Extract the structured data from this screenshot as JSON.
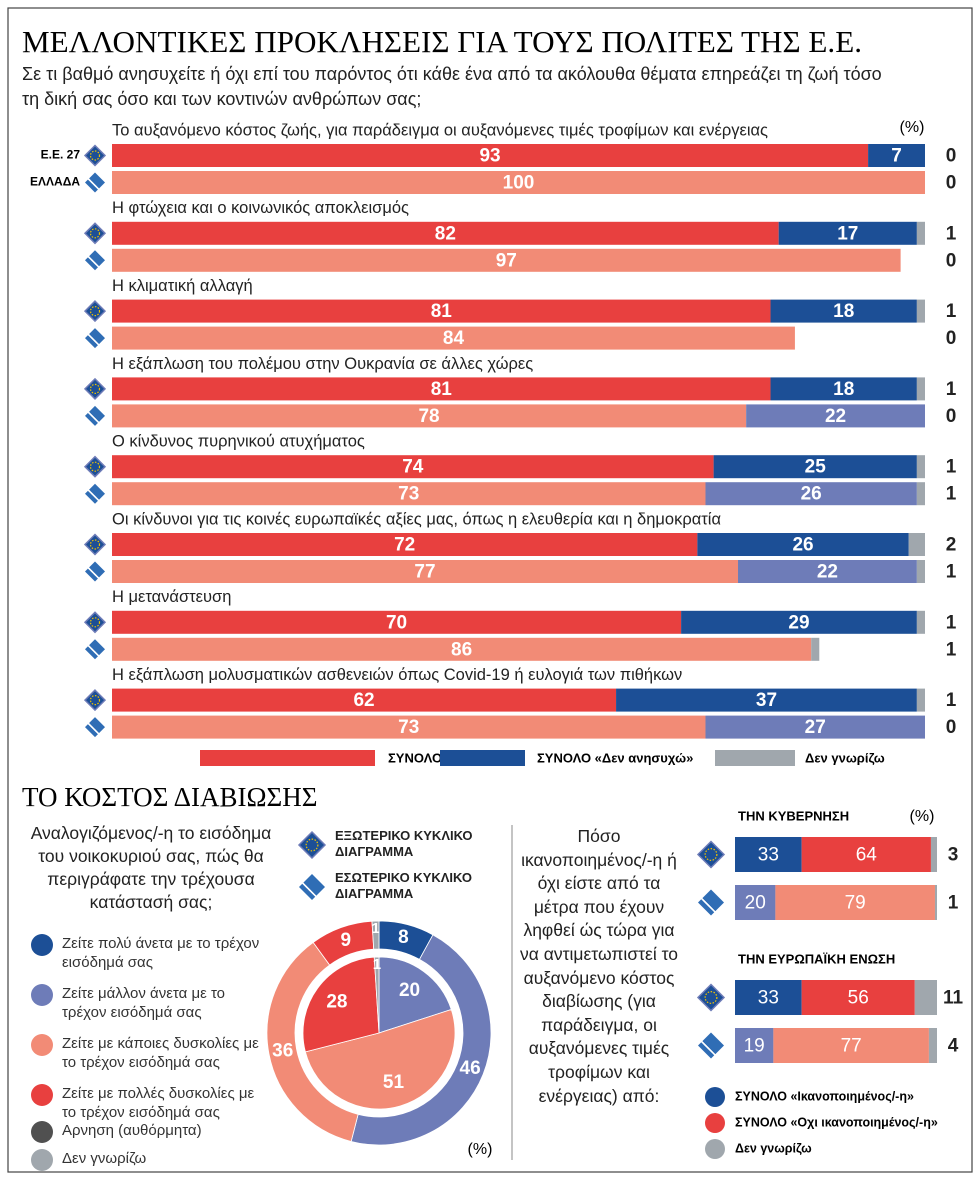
{
  "header": {
    "title": "ΜΕΛΛΟΝΤΙΚΕΣ ΠΡΟΚΛΗΣΕΙΣ ΓΙΑ ΤΟΥΣ ΠΟΛΙΤΕΣ ΤΗΣ Ε.Ε.",
    "subtitle": "Σε τι βαθμό ανησυχείτε ή όχι επί του παρόντος ότι κάθε ένα από τα ακόλουθα θέματα επηρεάζει τη ζωή τόσο τη δική σας όσο και των κοντινών ανθρώπων σας;",
    "section_title": "ΤΟ ΚΟΣΤΟΣ ΔΙΑΒΙΩΣΗΣ"
  },
  "chart_data": [
    {
      "type": "bar",
      "orientation": "horizontal",
      "stacked": true,
      "unit": "(%)",
      "xlim": [
        0,
        100
      ],
      "groups": [
        "Ε.Ε. 27",
        "ΕΛΛΑΔΑ"
      ],
      "categories": [
        "Το αυξανόμενο κόστος ζωής, για παράδειγμα οι αυξανόμενες τιμές τροφίμων και ενέργειας",
        "Η φτώχεια και ο κοινωνικός αποκλεισμός",
        "Η κλιματική αλλαγή",
        "Η εξάπλωση του πολέμου στην Ουκρανία σε άλλες χώρες",
        "Ο κίνδυνος πυρηνικού ατυχήματος",
        "Οι κίνδυνοι για τις κοινές ευρωπαϊκές αξίες μας, όπως η ελευθερία και η δημοκρατία",
        "Η μετανάστευση",
        "Η εξάπλωση μολυσματικών ασθενειών όπως Covid-19 ή ευλογιά των πιθήκων"
      ],
      "series": [
        {
          "name": "ΣΥΝΟΛΟ «Ανησυχώ»",
          "color": "#e8403f",
          "light_color": "#f28b76",
          "values": [
            [
              93,
              100
            ],
            [
              82,
              97
            ],
            [
              81,
              84
            ],
            [
              81,
              78
            ],
            [
              74,
              73
            ],
            [
              72,
              77
            ],
            [
              70,
              86
            ],
            [
              62,
              73
            ]
          ]
        },
        {
          "name": "ΣΥΝΟΛΟ «Δεν ανησυχώ»",
          "color": "#1c4f96",
          "light_color": "#6e7cb8",
          "values": [
            [
              7,
              null
            ],
            [
              17,
              null
            ],
            [
              18,
              null
            ],
            [
              18,
              22
            ],
            [
              25,
              26
            ],
            [
              26,
              22
            ],
            [
              29,
              null
            ],
            [
              37,
              27
            ]
          ]
        },
        {
          "name": "Δεν γνωρίζω",
          "color": "#a0a7ad",
          "light_color": "#a0a7ad",
          "values": [
            [
              0,
              0
            ],
            [
              1,
              0
            ],
            [
              1,
              0
            ],
            [
              1,
              0
            ],
            [
              1,
              1
            ],
            [
              2,
              1
            ],
            [
              1,
              1
            ],
            [
              1,
              0
            ]
          ]
        }
      ]
    },
    {
      "type": "pie",
      "donut": true,
      "unit": "(%)",
      "title": "Αναλογιζόμενος/-η το εισόδημα του νοικοκυριού σας, πώς θα περιγράφατε την τρέχουσα κατάστασή σας;",
      "categories": [
        "Ζείτε πολύ άνετα με το τρέχον εισόδημά σας",
        "Ζείτε μάλλον άνετα με το τρέχον εισόδημά σας",
        "Ζείτε με κάποιες δυσκολίες με το τρέχον εισόδημά σας",
        "Ζείτε με πολλές δυσκολίες με το τρέχον εισόδημά σας",
        "Αρνηση (αυθόρμητα)",
        "Δεν γνωρίζω"
      ],
      "colors": [
        "#1c4f96",
        "#6e7cb8",
        "#f28b76",
        "#e8403f",
        "#505050",
        "#a0a7ad"
      ],
      "series": [
        {
          "name": "ΕΞΩΤΕΡΙΚΟ ΚΥΚΛΙΚΟ ΔΙΑΓΡΑΜΜΑ",
          "values": [
            8,
            46,
            36,
            9,
            0,
            1
          ]
        },
        {
          "name": "ΕΣΩΤΕΡΙΚΟ ΚΥΚΛΙΚΟ ΔΙΑΓΡΑΜΜΑ",
          "values": [
            0,
            20,
            51,
            28,
            0,
            1
          ]
        }
      ]
    },
    {
      "type": "bar",
      "orientation": "horizontal",
      "stacked": true,
      "unit": "(%)",
      "xlim": [
        0,
        100
      ],
      "title": "Πόσο ικανοποιημένος/-η ή όχι είστε από τα μέτρα που έχουν ληφθεί ώς τώρα για να αντιμετωπιστεί το αυξανόμενο κόστος διαβίωσης (για παράδειγμα, οι αυξανόμενες τιμές τροφίμων και ενέργειας) από:",
      "categories": [
        "ΤΗΝ ΚΥΒΕΡΝΗΣΗ",
        "ΤΗΝ ΕΥΡΩΠΑΪΚΗ ΕΝΩΣΗ"
      ],
      "series": [
        {
          "name": "ΣΥΝΟΛΟ «Ικανοποιημένος/-η»",
          "color": "#1c4f96",
          "light_color": "#6e7cb8",
          "values": [
            [
              33,
              20
            ],
            [
              33,
              19
            ]
          ]
        },
        {
          "name": "ΣΥΝΟΛΟ «Οχι ικανοποιημένος/-η»",
          "color": "#e8403f",
          "light_color": "#f28b76",
          "values": [
            [
              64,
              79
            ],
            [
              56,
              77
            ]
          ]
        },
        {
          "name": "Δεν γνωρίζω",
          "color": "#a0a7ad",
          "light_color": "#a0a7ad",
          "values": [
            [
              3,
              1
            ],
            [
              11,
              4
            ]
          ]
        }
      ]
    }
  ]
}
